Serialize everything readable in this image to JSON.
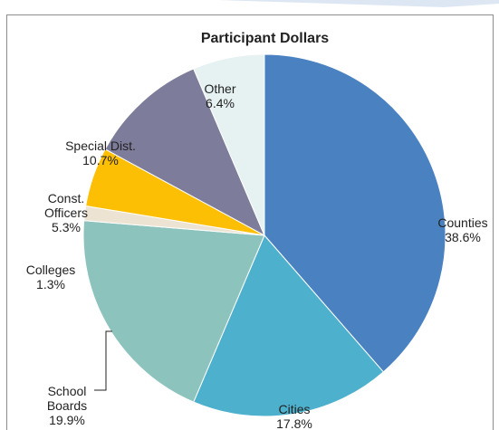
{
  "chart_data": {
    "type": "pie",
    "title": "Participant Dollars",
    "slices": [
      {
        "label_lines": [
          "Counties",
          "38.6%"
        ],
        "value": 38.6,
        "color": "#4a82c1"
      },
      {
        "label_lines": [
          "Cities",
          "17.8%"
        ],
        "value": 17.8,
        "color": "#4db1cd"
      },
      {
        "label_lines": [
          "School",
          "Boards",
          "19.9%"
        ],
        "value": 19.9,
        "color": "#8cc3bd"
      },
      {
        "label_lines": [
          "Colleges",
          "1.3%"
        ],
        "value": 1.3,
        "color": "#ede3d2"
      },
      {
        "label_lines": [
          "Const.",
          "Officers",
          "5.3%"
        ],
        "value": 5.3,
        "color": "#fcbf03"
      },
      {
        "label_lines": [
          "Special Dist.",
          "10.7%"
        ],
        "value": 10.7,
        "color": "#7d7d9b"
      },
      {
        "label_lines": [
          "Other",
          "6.4%"
        ],
        "value": 6.4,
        "color": "#e6f1f2"
      }
    ],
    "start_angle_deg": 0,
    "direction": "clockwise"
  }
}
